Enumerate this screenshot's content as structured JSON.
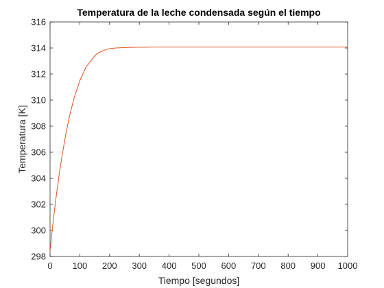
{
  "chart_data": {
    "type": "line",
    "title": "Temperatura de la leche condensada según el tiempo",
    "xlabel": "Tiempo [segundos]",
    "ylabel": "Temperatura [K]",
    "xlim": [
      0,
      1000
    ],
    "ylim": [
      298,
      316
    ],
    "xticks": [
      0,
      100,
      200,
      300,
      400,
      500,
      600,
      700,
      800,
      900,
      1000
    ],
    "yticks": [
      298,
      300,
      302,
      304,
      306,
      308,
      310,
      312,
      314,
      316
    ],
    "grid": false,
    "series": [
      {
        "color": "#d95319",
        "x": [
          0,
          10,
          20,
          30,
          40,
          50,
          60,
          70,
          80,
          90,
          100,
          110,
          120,
          130,
          140,
          150,
          160,
          170,
          180,
          190,
          200,
          220,
          240,
          260,
          280,
          300,
          320,
          350,
          380,
          400,
          450,
          500,
          600,
          700,
          800,
          900,
          1000
        ],
        "y": [
          298.4,
          300.6,
          302.5,
          304.2,
          305.7,
          307.0,
          308.2,
          309.2,
          310.1,
          310.8,
          311.5,
          312.0,
          312.5,
          312.8,
          313.1,
          313.4,
          313.6,
          313.7,
          313.8,
          313.9,
          313.95,
          314.0,
          314.02,
          314.04,
          314.05,
          314.06,
          314.06,
          314.07,
          314.07,
          314.07,
          314.07,
          314.07,
          314.07,
          314.07,
          314.07,
          314.07,
          314.07
        ]
      }
    ]
  },
  "colors": {
    "axis": "#262626",
    "line": "#d95319"
  }
}
